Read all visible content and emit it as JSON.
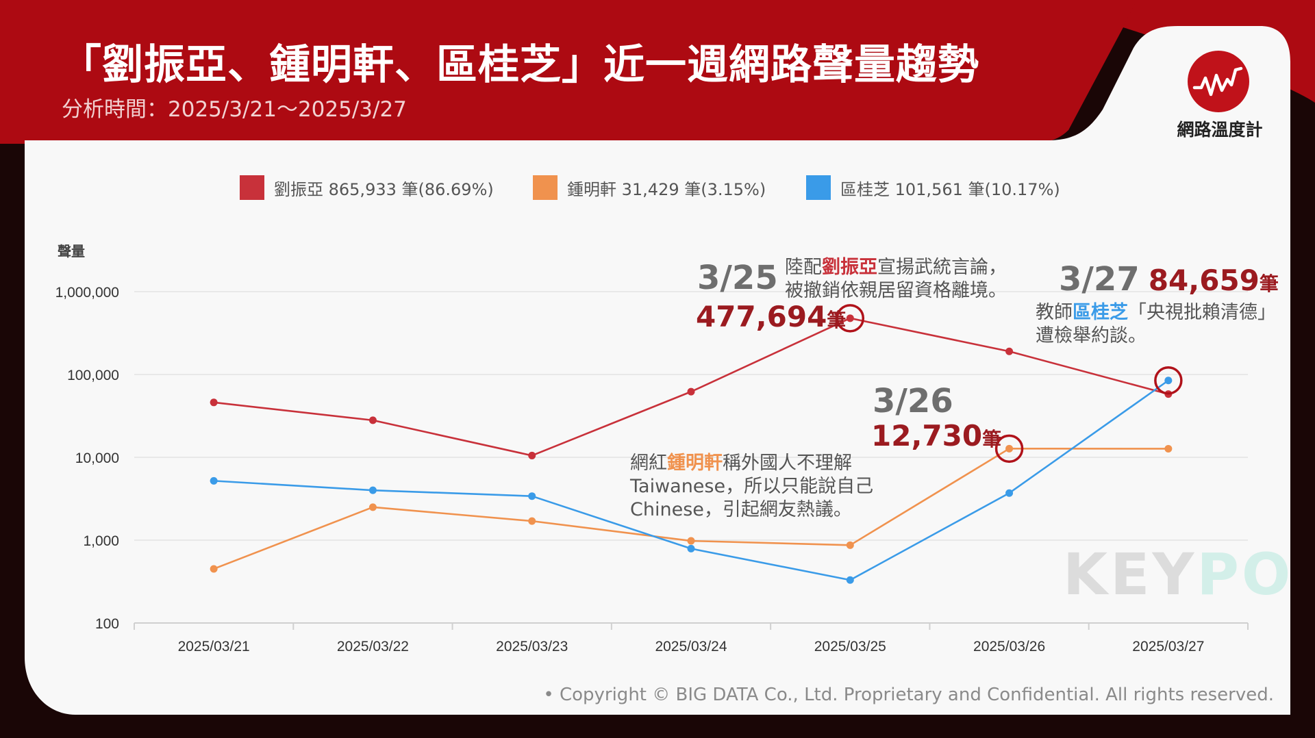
{
  "header": {
    "title": "「劉振亞、鍾明軒、區桂芝」近一週網路聲量趨勢",
    "subtitle": "分析時間：2025/3/21～2025/3/27"
  },
  "brand": {
    "name": "網路溫度計",
    "icon": "heartbeat-chart-icon"
  },
  "legend": [
    {
      "label": "劉振亞 865,933 筆(86.69%)",
      "color": "#c8313a"
    },
    {
      "label": "鍾明軒 31,429 筆(3.15%)",
      "color": "#f0924e"
    },
    {
      "label": "區桂芝 101,561 筆(10.17%)",
      "color": "#3a9be8"
    }
  ],
  "chart_data": {
    "type": "line",
    "yscale": "log",
    "ylabel": "聲量",
    "ylim": [
      100,
      1000000
    ],
    "yticks": [
      "100",
      "1,000",
      "10,000",
      "100,000",
      "1,000,000"
    ],
    "x": [
      "2025/03/21",
      "2025/03/22",
      "2025/03/23",
      "2025/03/24",
      "2025/03/25",
      "2025/03/26",
      "2025/03/27"
    ],
    "grid": true,
    "legend_position": "top",
    "series": [
      {
        "name": "劉振亞",
        "color": "#c8313a",
        "values": [
          46000,
          28000,
          10500,
          62000,
          477694,
          190000,
          58000
        ]
      },
      {
        "name": "鍾明軒",
        "color": "#f0924e",
        "values": [
          450,
          2500,
          1700,
          980,
          870,
          12730,
          12700
        ]
      },
      {
        "name": "區桂芝",
        "color": "#3a9be8",
        "values": [
          5200,
          4000,
          3400,
          790,
          330,
          3700,
          84659
        ]
      }
    ]
  },
  "annotations": {
    "a325": {
      "date": "3/25",
      "value": "477,694",
      "unit": "筆",
      "line1_pre": "陸配",
      "line1_name": "劉振亞",
      "line1_post": "宣揚武統言論，",
      "line2": "被撤銷依親居留資格離境。"
    },
    "a327": {
      "date": "3/27",
      "value": "84,659",
      "unit": "筆",
      "line1_pre": "教師",
      "line1_name": "區桂芝",
      "line1_post": "「央視批賴清德」",
      "line2": "遭檢舉約談。"
    },
    "a326": {
      "date": "3/26",
      "value": "12,730",
      "unit": "筆"
    },
    "zhong": {
      "line1_pre": "網紅",
      "line1_name": "鍾明軒",
      "line1_post": "稱外國人不理解",
      "line2": "Taiwanese，所以只能說自己",
      "line3": "Chinese，引起網友熱議。"
    }
  },
  "watermark": {
    "part1": "KEY",
    "part2": "PO"
  },
  "footer": "• Copyright © BIG DATA Co., Ltd. Proprietary and Confidential. All rights reserved."
}
